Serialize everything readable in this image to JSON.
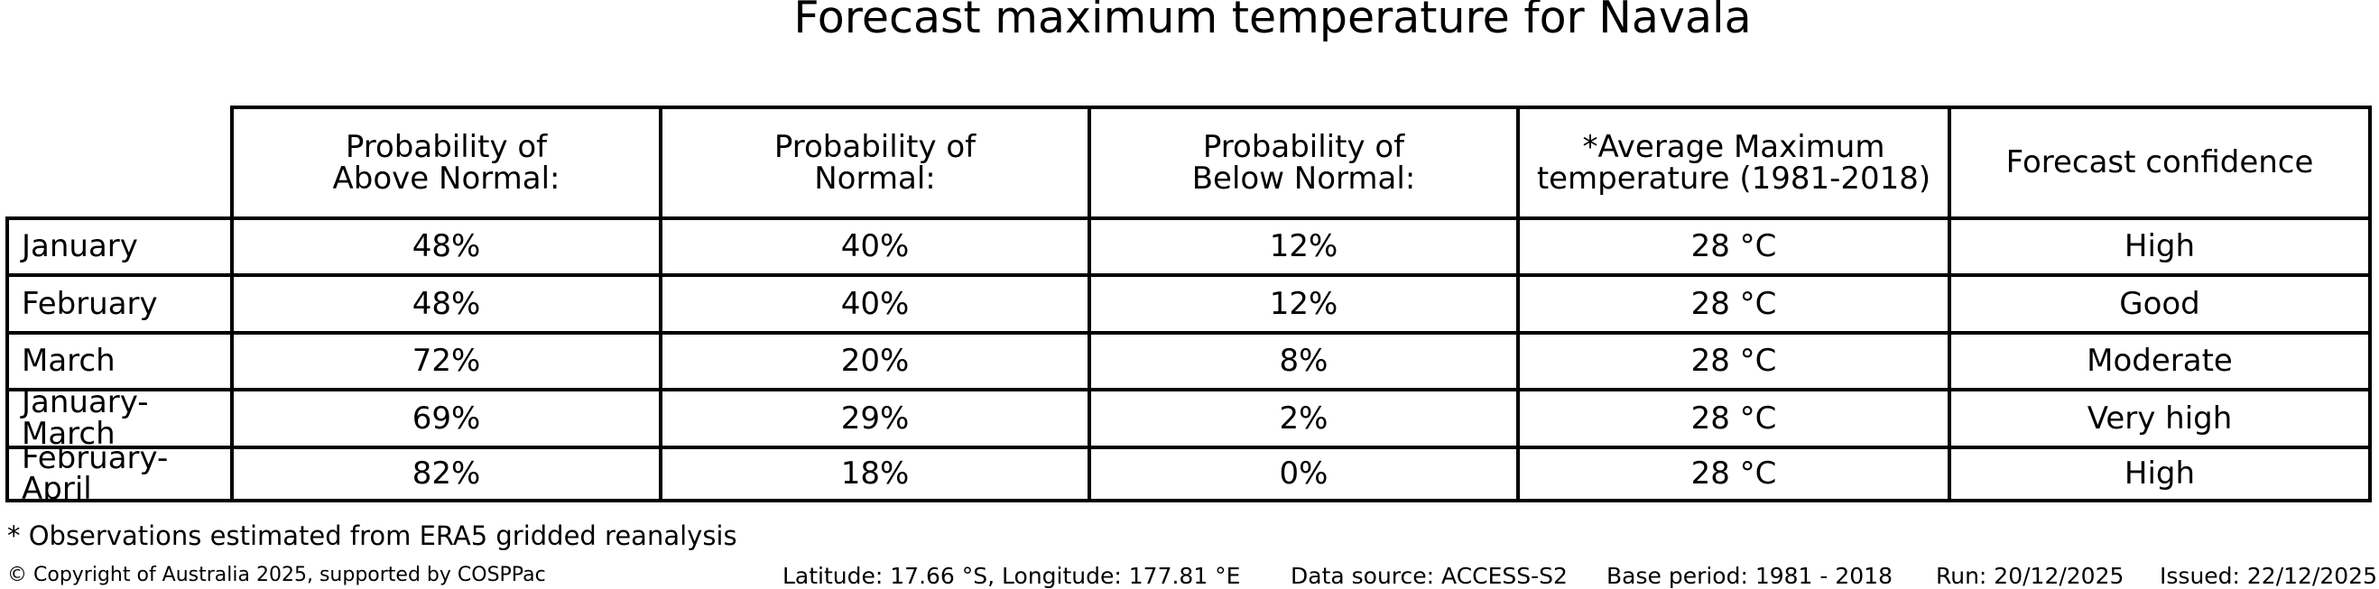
{
  "title": "Forecast maximum temperature for Navala",
  "colors": {
    "background": "#ffffff",
    "border": "#000000",
    "text": "#000000"
  },
  "table": {
    "headers": {
      "above": [
        "Probability of",
        "Above Normal:"
      ],
      "normal": [
        "Probability of",
        "Normal:"
      ],
      "below": [
        "Probability of",
        "Below Normal:"
      ],
      "avg": [
        "*Average Maximum",
        "temperature (1981-2018)"
      ],
      "confidence": [
        "Forecast confidence"
      ]
    },
    "rows": [
      {
        "label": "January",
        "above": "48%",
        "normal": "40%",
        "below": "12%",
        "avg_temp": "28 °C",
        "confidence": "High"
      },
      {
        "label": "February",
        "above": "48%",
        "normal": "40%",
        "below": "12%",
        "avg_temp": "28 °C",
        "confidence": "Good"
      },
      {
        "label": "March",
        "above": "72%",
        "normal": "20%",
        "below": "8%",
        "avg_temp": "28 °C",
        "confidence": "Moderate"
      },
      {
        "label": "January-March",
        "above": "69%",
        "normal": "29%",
        "below": "2%",
        "avg_temp": "28 °C",
        "confidence": "Very high"
      },
      {
        "label": "February-April",
        "above": "82%",
        "normal": "18%",
        "below": "0%",
        "avg_temp": "28 °C",
        "confidence": "High"
      }
    ]
  },
  "footnote": "* Observations estimated from ERA5 gridded reanalysis",
  "footer": {
    "copyright": "© Copyright of Australia 2025, supported by COSPPac",
    "location": "Latitude: 17.66 °S, Longitude: 177.81 °E",
    "data_source": "Data source: ACCESS-S2",
    "base_period": "Base period: 1981 - 2018",
    "run": "Run: 20/12/2025",
    "issued": "Issued: 22/12/2025"
  }
}
